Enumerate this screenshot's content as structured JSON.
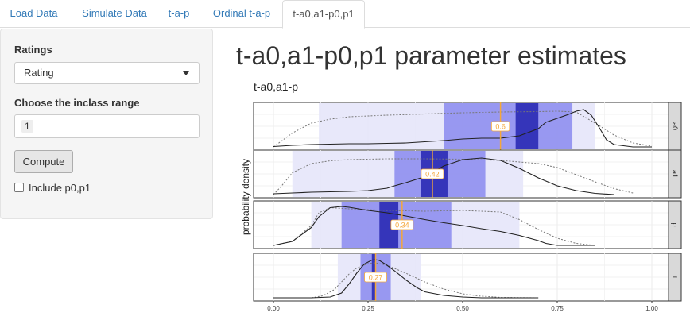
{
  "tabs": [
    {
      "label": "Load Data",
      "active": false
    },
    {
      "label": "Simulate Data",
      "active": false
    },
    {
      "label": "t-a-p",
      "active": false
    },
    {
      "label": "Ordinal t-a-p",
      "active": false
    },
    {
      "label": "t-a0,a1-p0,p1",
      "active": true
    }
  ],
  "sidebar": {
    "ratings_label": "Ratings",
    "ratings_value": "Rating",
    "range_label": "Choose the inclass range",
    "range_value": "1",
    "compute_label": "Compute",
    "include_label": "Include p0,p1",
    "include_checked": false
  },
  "main": {
    "title": "t-a0,a1-p0,p1 parameter estimates"
  },
  "colors": {
    "band_outer": "#e6e6fa",
    "band_mid": "#8a8aee",
    "band_inner": "#2323b0",
    "median": "#f4a73a",
    "link": "#337ab7"
  },
  "chart_data": {
    "type": "area",
    "title": "t-a0,a1-p",
    "ylabel": "probability density",
    "xlim": [
      0,
      1
    ],
    "xticks": [
      "0.00",
      "0.25",
      "0.50",
      "0.75",
      "1.00"
    ],
    "facets": [
      {
        "name": "a0",
        "median": 0.6,
        "median_label": "0.6",
        "ci_outer": [
          0.12,
          0.85
        ],
        "ci_mid": [
          0.45,
          0.79
        ],
        "ci_inner": [
          0.64,
          0.7
        ],
        "density_x": [
          0.0,
          0.05,
          0.1,
          0.15,
          0.2,
          0.25,
          0.3,
          0.35,
          0.4,
          0.45,
          0.5,
          0.55,
          0.6,
          0.65,
          0.7,
          0.72,
          0.75,
          0.78,
          0.8,
          0.82,
          0.84,
          0.86,
          0.88,
          0.9,
          0.95,
          1.0
        ],
        "density_y": [
          0.01,
          0.04,
          0.06,
          0.07,
          0.08,
          0.08,
          0.09,
          0.1,
          0.13,
          0.16,
          0.2,
          0.22,
          0.22,
          0.28,
          0.46,
          0.62,
          0.72,
          0.82,
          0.9,
          0.94,
          0.8,
          0.5,
          0.18,
          0.06,
          0.0,
          0.0
        ],
        "prior_x": [
          0.0,
          0.05,
          0.1,
          0.15,
          0.2,
          0.3,
          0.4,
          0.5,
          0.6,
          0.7,
          0.75,
          0.8,
          0.85,
          0.9,
          0.95,
          1.0
        ],
        "prior_y": [
          0.0,
          0.35,
          0.6,
          0.7,
          0.76,
          0.8,
          0.83,
          0.86,
          0.88,
          0.89,
          0.9,
          0.88,
          0.6,
          0.3,
          0.1,
          0.02
        ]
      },
      {
        "name": "a1",
        "median": 0.42,
        "median_label": "0.42",
        "ci_outer": [
          0.05,
          0.66
        ],
        "ci_mid": [
          0.32,
          0.56
        ],
        "ci_inner": [
          0.39,
          0.46
        ],
        "density_x": [
          0.0,
          0.05,
          0.1,
          0.15,
          0.2,
          0.25,
          0.3,
          0.32,
          0.35,
          0.4,
          0.42,
          0.45,
          0.5,
          0.55,
          0.6,
          0.65,
          0.7,
          0.75,
          0.8,
          0.85,
          0.9
        ],
        "density_y": [
          0.02,
          0.04,
          0.06,
          0.07,
          0.08,
          0.1,
          0.16,
          0.22,
          0.3,
          0.45,
          0.55,
          0.72,
          0.88,
          0.92,
          0.86,
          0.66,
          0.42,
          0.22,
          0.1,
          0.03,
          0.0
        ],
        "prior_x": [
          0.0,
          0.02,
          0.05,
          0.1,
          0.15,
          0.2,
          0.3,
          0.4,
          0.5,
          0.6,
          0.7,
          0.75,
          0.8,
          0.85,
          0.9,
          0.95
        ],
        "prior_y": [
          0.0,
          0.2,
          0.55,
          0.78,
          0.85,
          0.88,
          0.9,
          0.9,
          0.89,
          0.86,
          0.78,
          0.68,
          0.5,
          0.32,
          0.15,
          0.04
        ]
      },
      {
        "name": "p",
        "median": 0.34,
        "median_label": "0.34",
        "ci_outer": [
          0.1,
          0.65
        ],
        "ci_mid": [
          0.18,
          0.47
        ],
        "ci_inner": [
          0.28,
          0.33
        ],
        "density_x": [
          0.0,
          0.05,
          0.1,
          0.12,
          0.15,
          0.18,
          0.2,
          0.25,
          0.3,
          0.35,
          0.4,
          0.45,
          0.5,
          0.55,
          0.6,
          0.65,
          0.7,
          0.72,
          0.75,
          0.8,
          0.85
        ],
        "density_y": [
          0.0,
          0.1,
          0.45,
          0.72,
          0.95,
          0.98,
          0.96,
          0.88,
          0.82,
          0.74,
          0.65,
          0.57,
          0.5,
          0.42,
          0.35,
          0.25,
          0.12,
          0.05,
          0.0,
          0.0,
          0.0
        ],
        "prior_x": [
          0.0,
          0.05,
          0.1,
          0.12,
          0.15,
          0.2,
          0.3,
          0.4,
          0.5,
          0.6,
          0.65,
          0.7,
          0.75,
          0.8,
          0.85
        ],
        "prior_y": [
          0.0,
          0.1,
          0.5,
          0.82,
          0.95,
          0.92,
          0.88,
          0.86,
          0.88,
          0.84,
          0.65,
          0.4,
          0.18,
          0.05,
          0.0
        ]
      },
      {
        "name": "t",
        "median": 0.27,
        "median_label": "0.27",
        "ci_outer": [
          0.17,
          0.39
        ],
        "ci_mid": [
          0.23,
          0.31
        ],
        "ci_inner": [
          0.26,
          0.27
        ],
        "density_x": [
          0.0,
          0.1,
          0.15,
          0.18,
          0.2,
          0.22,
          0.24,
          0.26,
          0.27,
          0.28,
          0.3,
          0.32,
          0.35,
          0.38,
          0.4,
          0.45,
          0.5,
          0.55,
          0.6,
          0.7
        ],
        "density_y": [
          0.0,
          0.0,
          0.02,
          0.12,
          0.35,
          0.62,
          0.85,
          0.95,
          0.96,
          0.94,
          0.82,
          0.68,
          0.45,
          0.25,
          0.15,
          0.06,
          0.02,
          0.0,
          0.0,
          0.0
        ],
        "prior_x": [
          0.0,
          0.1,
          0.13,
          0.16,
          0.18,
          0.2,
          0.22,
          0.25,
          0.27,
          0.3,
          0.35,
          0.4,
          0.45,
          0.5,
          0.55,
          0.6,
          0.7
        ],
        "prior_y": [
          0.0,
          0.0,
          0.05,
          0.2,
          0.4,
          0.6,
          0.75,
          0.86,
          0.88,
          0.82,
          0.62,
          0.4,
          0.22,
          0.1,
          0.04,
          0.01,
          0.0
        ]
      }
    ]
  }
}
